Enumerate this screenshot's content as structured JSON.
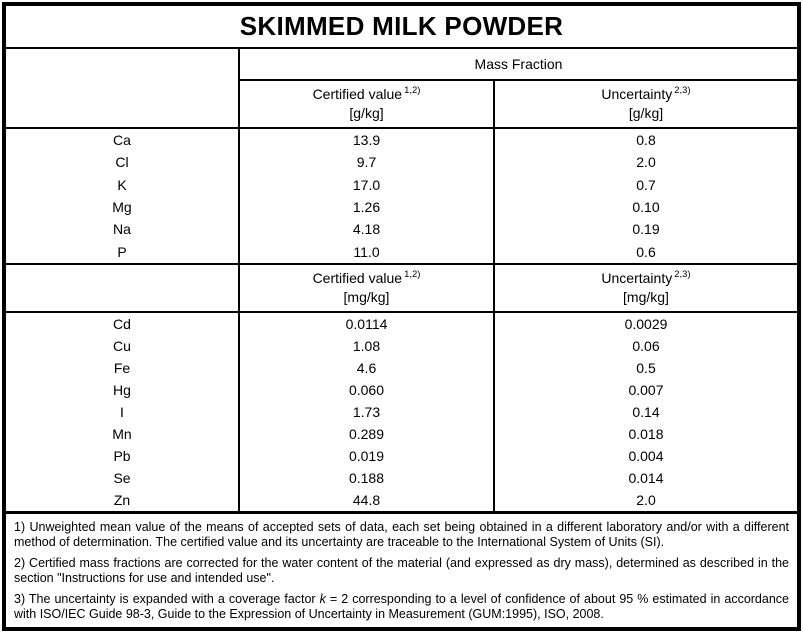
{
  "title": "SKIMMED MILK POWDER",
  "table": {
    "group_header": "Mass Fraction",
    "sections": [
      {
        "certified_label": "Certified value",
        "certified_sup": "1,2)",
        "certified_unit": "[g/kg]",
        "uncertainty_label": "Uncertainty",
        "uncertainty_sup": "2,3)",
        "uncertainty_unit": "[g/kg]",
        "rows": [
          {
            "element": "Ca",
            "certified": "13.9",
            "uncertainty": "0.8"
          },
          {
            "element": "Cl",
            "certified": "9.7",
            "uncertainty": "2.0"
          },
          {
            "element": "K",
            "certified": "17.0",
            "uncertainty": "0.7"
          },
          {
            "element": "Mg",
            "certified": "1.26",
            "uncertainty": "0.10"
          },
          {
            "element": "Na",
            "certified": "4.18",
            "uncertainty": "0.19"
          },
          {
            "element": "P",
            "certified": "11.0",
            "uncertainty": "0.6"
          }
        ]
      },
      {
        "certified_label": "Certified value",
        "certified_sup": "1,2)",
        "certified_unit": "[mg/kg]",
        "uncertainty_label": "Uncertainty",
        "uncertainty_sup": "2,3)",
        "uncertainty_unit": "[mg/kg]",
        "rows": [
          {
            "element": "Cd",
            "certified": "0.0114",
            "uncertainty": "0.0029"
          },
          {
            "element": "Cu",
            "certified": "1.08",
            "uncertainty": "0.06"
          },
          {
            "element": "Fe",
            "certified": "4.6",
            "uncertainty": "0.5"
          },
          {
            "element": "Hg",
            "certified": "0.060",
            "uncertainty": "0.007"
          },
          {
            "element": "I",
            "certified": "1.73",
            "uncertainty": "0.14"
          },
          {
            "element": "Mn",
            "certified": "0.289",
            "uncertainty": "0.018"
          },
          {
            "element": "Pb",
            "certified": "0.019",
            "uncertainty": "0.004"
          },
          {
            "element": "Se",
            "certified": "0.188",
            "uncertainty": "0.014"
          },
          {
            "element": "Zn",
            "certified": "44.8",
            "uncertainty": "2.0"
          }
        ]
      }
    ]
  },
  "footnotes": [
    {
      "text": "1) Unweighted mean value of the means of accepted sets of data, each set being obtained in a different laboratory and/or with a different method of determination. The certified value and its uncertainty are traceable to the International System of Units (SI)."
    },
    {
      "text": "2) Certified mass fractions are corrected for the water content of the material (and expressed as dry mass), determined as described in the section \"Instructions for use and intended use\"."
    },
    {
      "prefix": "3) The uncertainty is expanded with a coverage factor ",
      "italic": "k",
      "suffix": " = 2 corresponding to a level of confidence of about 95 % estimated in accordance with ISO/IEC Guide 98-3, Guide to the Expression of Uncertainty in Measurement (GUM:1995), ISO, 2008."
    }
  ],
  "colors": {
    "border": "#000000",
    "background": "#ffffff",
    "text": "#000000"
  }
}
